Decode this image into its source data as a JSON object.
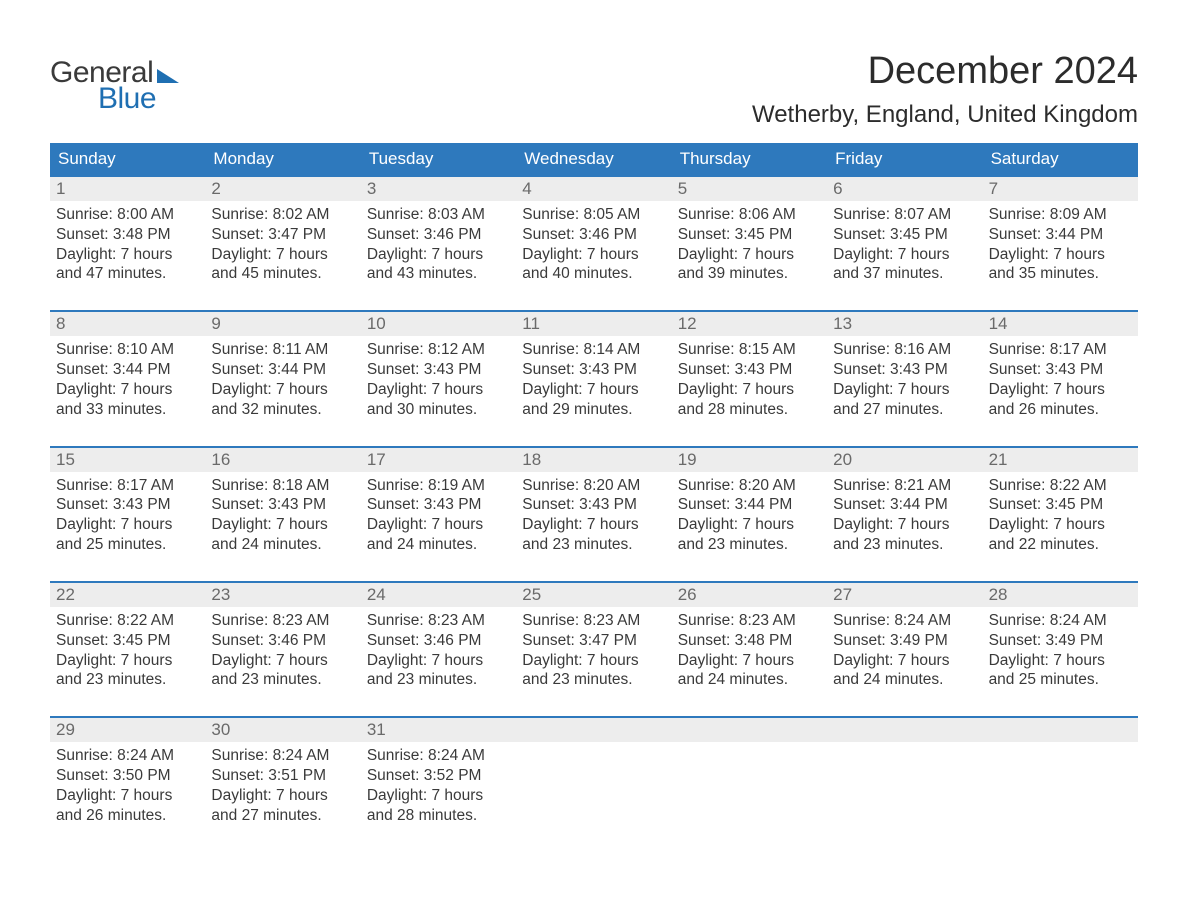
{
  "colors": {
    "header_bg": "#2e79bd",
    "header_text": "#ffffff",
    "daynum_bg": "#ededed",
    "daynum_text": "#6a6a6a",
    "body_text": "#3a3a3a",
    "accent_blue": "#1f6fb2",
    "week_border": "#2e79bd",
    "page_bg": "#ffffff"
  },
  "typography": {
    "title_fontsize_pt": 28,
    "location_fontsize_pt": 18,
    "header_fontsize_pt": 13,
    "body_fontsize_pt": 12,
    "font_family": "Arial"
  },
  "logo": {
    "general": "General",
    "blue": "Blue"
  },
  "title": "December 2024",
  "location": "Wetherby, England, United Kingdom",
  "weekdays": [
    "Sunday",
    "Monday",
    "Tuesday",
    "Wednesday",
    "Thursday",
    "Friday",
    "Saturday"
  ],
  "weeks": [
    [
      {
        "n": "1",
        "sunrise": "8:00 AM",
        "sunset": "3:48 PM",
        "dlh": "7",
        "dlm": "47"
      },
      {
        "n": "2",
        "sunrise": "8:02 AM",
        "sunset": "3:47 PM",
        "dlh": "7",
        "dlm": "45"
      },
      {
        "n": "3",
        "sunrise": "8:03 AM",
        "sunset": "3:46 PM",
        "dlh": "7",
        "dlm": "43"
      },
      {
        "n": "4",
        "sunrise": "8:05 AM",
        "sunset": "3:46 PM",
        "dlh": "7",
        "dlm": "40"
      },
      {
        "n": "5",
        "sunrise": "8:06 AM",
        "sunset": "3:45 PM",
        "dlh": "7",
        "dlm": "39"
      },
      {
        "n": "6",
        "sunrise": "8:07 AM",
        "sunset": "3:45 PM",
        "dlh": "7",
        "dlm": "37"
      },
      {
        "n": "7",
        "sunrise": "8:09 AM",
        "sunset": "3:44 PM",
        "dlh": "7",
        "dlm": "35"
      }
    ],
    [
      {
        "n": "8",
        "sunrise": "8:10 AM",
        "sunset": "3:44 PM",
        "dlh": "7",
        "dlm": "33"
      },
      {
        "n": "9",
        "sunrise": "8:11 AM",
        "sunset": "3:44 PM",
        "dlh": "7",
        "dlm": "32"
      },
      {
        "n": "10",
        "sunrise": "8:12 AM",
        "sunset": "3:43 PM",
        "dlh": "7",
        "dlm": "30"
      },
      {
        "n": "11",
        "sunrise": "8:14 AM",
        "sunset": "3:43 PM",
        "dlh": "7",
        "dlm": "29"
      },
      {
        "n": "12",
        "sunrise": "8:15 AM",
        "sunset": "3:43 PM",
        "dlh": "7",
        "dlm": "28"
      },
      {
        "n": "13",
        "sunrise": "8:16 AM",
        "sunset": "3:43 PM",
        "dlh": "7",
        "dlm": "27"
      },
      {
        "n": "14",
        "sunrise": "8:17 AM",
        "sunset": "3:43 PM",
        "dlh": "7",
        "dlm": "26"
      }
    ],
    [
      {
        "n": "15",
        "sunrise": "8:17 AM",
        "sunset": "3:43 PM",
        "dlh": "7",
        "dlm": "25"
      },
      {
        "n": "16",
        "sunrise": "8:18 AM",
        "sunset": "3:43 PM",
        "dlh": "7",
        "dlm": "24"
      },
      {
        "n": "17",
        "sunrise": "8:19 AM",
        "sunset": "3:43 PM",
        "dlh": "7",
        "dlm": "24"
      },
      {
        "n": "18",
        "sunrise": "8:20 AM",
        "sunset": "3:43 PM",
        "dlh": "7",
        "dlm": "23"
      },
      {
        "n": "19",
        "sunrise": "8:20 AM",
        "sunset": "3:44 PM",
        "dlh": "7",
        "dlm": "23"
      },
      {
        "n": "20",
        "sunrise": "8:21 AM",
        "sunset": "3:44 PM",
        "dlh": "7",
        "dlm": "23"
      },
      {
        "n": "21",
        "sunrise": "8:22 AM",
        "sunset": "3:45 PM",
        "dlh": "7",
        "dlm": "22"
      }
    ],
    [
      {
        "n": "22",
        "sunrise": "8:22 AM",
        "sunset": "3:45 PM",
        "dlh": "7",
        "dlm": "23"
      },
      {
        "n": "23",
        "sunrise": "8:23 AM",
        "sunset": "3:46 PM",
        "dlh": "7",
        "dlm": "23"
      },
      {
        "n": "24",
        "sunrise": "8:23 AM",
        "sunset": "3:46 PM",
        "dlh": "7",
        "dlm": "23"
      },
      {
        "n": "25",
        "sunrise": "8:23 AM",
        "sunset": "3:47 PM",
        "dlh": "7",
        "dlm": "23"
      },
      {
        "n": "26",
        "sunrise": "8:23 AM",
        "sunset": "3:48 PM",
        "dlh": "7",
        "dlm": "24"
      },
      {
        "n": "27",
        "sunrise": "8:24 AM",
        "sunset": "3:49 PM",
        "dlh": "7",
        "dlm": "24"
      },
      {
        "n": "28",
        "sunrise": "8:24 AM",
        "sunset": "3:49 PM",
        "dlh": "7",
        "dlm": "25"
      }
    ],
    [
      {
        "n": "29",
        "sunrise": "8:24 AM",
        "sunset": "3:50 PM",
        "dlh": "7",
        "dlm": "26"
      },
      {
        "n": "30",
        "sunrise": "8:24 AM",
        "sunset": "3:51 PM",
        "dlh": "7",
        "dlm": "27"
      },
      {
        "n": "31",
        "sunrise": "8:24 AM",
        "sunset": "3:52 PM",
        "dlh": "7",
        "dlm": "28"
      },
      null,
      null,
      null,
      null
    ]
  ],
  "labels": {
    "sunrise": "Sunrise: ",
    "sunset": "Sunset: ",
    "daylight1": "Daylight: ",
    "hours": " hours",
    "and": "and ",
    "minutes": " minutes."
  }
}
